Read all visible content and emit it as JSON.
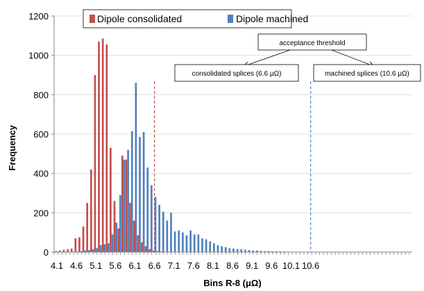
{
  "chart_data": {
    "type": "bar",
    "xlabel": "Bins R-8 (μΩ)",
    "ylabel": "Frequency",
    "ylim": [
      0,
      1200
    ],
    "yticks": [
      0,
      200,
      400,
      600,
      800,
      1000,
      1200
    ],
    "x_bin_start": 4.1,
    "x_bin_width": 0.1,
    "xtick_labels": [
      "4.1",
      "4.6",
      "5.1",
      "5.6",
      "6.1",
      "6.6",
      "7.1",
      "7.6",
      "8.1",
      "8.6",
      "9.1",
      "9.6",
      "10.1",
      "10.6"
    ],
    "legend_position": "top",
    "series": [
      {
        "name": "Dipole consolidated",
        "color": "#c0504d",
        "values": [
          5,
          8,
          12,
          15,
          18,
          70,
          75,
          130,
          250,
          420,
          900,
          1070,
          1085,
          1055,
          530,
          260,
          120,
          490,
          470,
          250,
          160,
          85,
          50,
          30,
          15,
          8,
          5,
          3,
          2,
          1
        ]
      },
      {
        "name": "Dipole machined",
        "color": "#4f81bd",
        "values": [
          0,
          0,
          0,
          0,
          2,
          3,
          5,
          8,
          10,
          15,
          20,
          35,
          40,
          45,
          90,
          150,
          290,
          470,
          520,
          615,
          860,
          585,
          610,
          430,
          340,
          280,
          240,
          205,
          160,
          200,
          105,
          110,
          100,
          85,
          110,
          90,
          90,
          70,
          65,
          55,
          45,
          35,
          30,
          25,
          20,
          18,
          15,
          15,
          12,
          10,
          8,
          8,
          6,
          5,
          5,
          4,
          4,
          3,
          3,
          2,
          2,
          2,
          2,
          1,
          1,
          1,
          1,
          1,
          1
        ]
      }
    ],
    "thresholds": [
      {
        "x": 6.6,
        "color": "#c0504d",
        "label": "consolidated splices (6.6  μΩ)"
      },
      {
        "x": 10.6,
        "color": "#4f81bd",
        "label": "machined splices (10.6 μΩ)"
      }
    ],
    "annotation": "acceptance threshold"
  }
}
